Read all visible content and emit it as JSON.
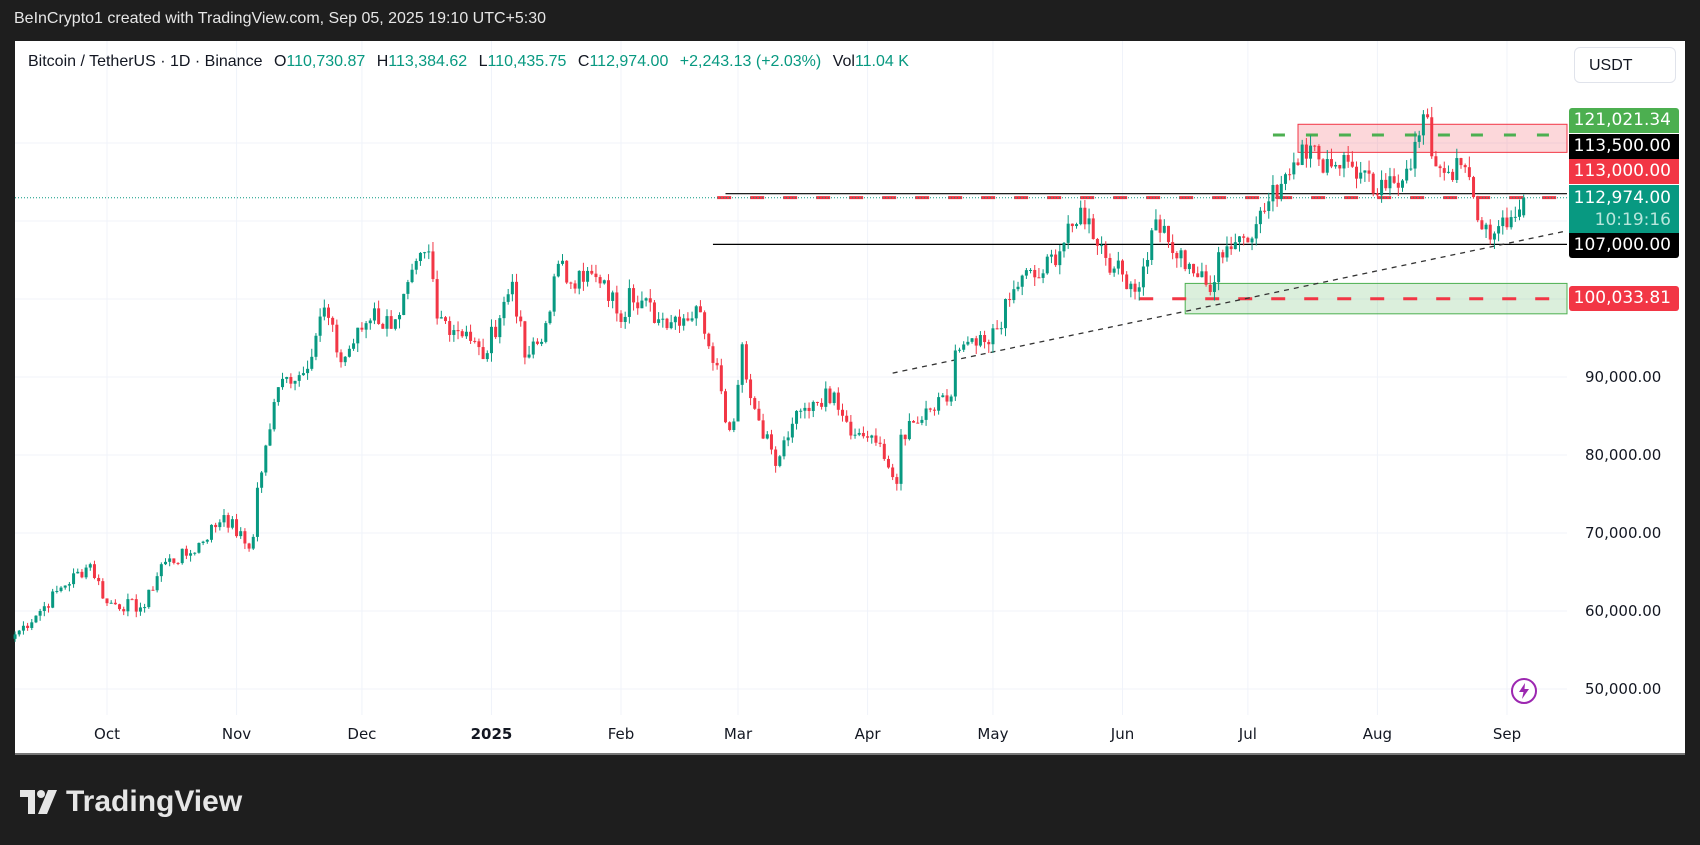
{
  "header": {
    "caption": "BeInCrypto1 created with TradingView.com, Sep 05, 2025 19:10 UTC+5:30"
  },
  "legend": {
    "symbol": "Bitcoin / TetherUS · 1D · Binance",
    "open_label": "O",
    "open": "110,730.87",
    "high_label": "H",
    "high": "113,384.62",
    "low_label": "L",
    "low": "110,435.75",
    "close_label": "C",
    "close": "112,974.00",
    "change": "+2,243.13 (+2.03%)",
    "vol_label": "Vol",
    "vol": "11.04 K"
  },
  "currency_button": "USDT",
  "price_labels": {
    "target": "121,021.34",
    "resistance_upper": "113,500.00",
    "resistance_dashed": "113,000.00",
    "current": "112,974.00",
    "countdown": "10:19:16",
    "support_line": "107,000.00",
    "support_dashed": "100,033.81"
  },
  "brand": {
    "logo_text": "TradingView"
  },
  "colors": {
    "up": "#089981",
    "down": "#F23645",
    "annotation_green": "#4CAF50",
    "annotation_red": "#F23645",
    "background": "#1e1e1e"
  },
  "chart_data": {
    "type": "candlestick",
    "interval": "1D",
    "yaxis": {
      "ticks": [
        50000,
        60000,
        70000,
        80000,
        90000
      ],
      "tick_labels": [
        "50,000.00",
        "60,000.00",
        "70,000.00",
        "80,000.00",
        "90,000.00"
      ],
      "ylim": [
        48000,
        127000
      ],
      "scale": "linear"
    },
    "xaxis": {
      "tick_labels": [
        "Oct",
        "Nov",
        "Dec",
        "2025",
        "Feb",
        "Mar",
        "Apr",
        "May",
        "Jun",
        "Jul",
        "Aug",
        "Sep"
      ],
      "tick_dates": [
        "2024-10-01",
        "2024-11-01",
        "2024-12-01",
        "2025-01-01",
        "2025-02-01",
        "2025-03-01",
        "2025-04-01",
        "2025-05-01",
        "2025-06-01",
        "2025-07-01",
        "2025-08-01",
        "2025-09-01"
      ],
      "range": [
        "2024-09-09",
        "2025-09-05"
      ]
    },
    "grid": true,
    "last_candle": {
      "date": "2025-09-05",
      "open": 110730.87,
      "high": 113384.62,
      "low": 110435.75,
      "close": 112974.0
    },
    "close_keypoints": [
      [
        "2024-09-09",
        57000
      ],
      [
        "2024-09-15",
        60000
      ],
      [
        "2024-09-20",
        63000
      ],
      [
        "2024-09-27",
        66000
      ],
      [
        "2024-10-01",
        61000
      ],
      [
        "2024-10-10",
        60500
      ],
      [
        "2024-10-14",
        66000
      ],
      [
        "2024-10-21",
        67400
      ],
      [
        "2024-10-29",
        72300
      ],
      [
        "2024-11-04",
        68000
      ],
      [
        "2024-11-05",
        69500
      ],
      [
        "2024-11-06",
        75800
      ],
      [
        "2024-11-11",
        88700
      ],
      [
        "2024-11-13",
        90000
      ],
      [
        "2024-11-17",
        90500
      ],
      [
        "2024-11-22",
        98900
      ],
      [
        "2024-11-26",
        91900
      ],
      [
        "2024-12-04",
        98800
      ],
      [
        "2024-12-05",
        96800
      ],
      [
        "2024-12-09",
        97400
      ],
      [
        "2024-12-16",
        106000
      ],
      [
        "2024-12-17",
        106100
      ],
      [
        "2024-12-19",
        97500
      ],
      [
        "2024-12-26",
        95800
      ],
      [
        "2024-12-30",
        92300
      ],
      [
        "2025-01-06",
        102200
      ],
      [
        "2025-01-09",
        92500
      ],
      [
        "2025-01-13",
        94500
      ],
      [
        "2025-01-17",
        104500
      ],
      [
        "2025-01-20",
        102000
      ],
      [
        "2025-01-22",
        103600
      ],
      [
        "2025-01-27",
        102000
      ],
      [
        "2025-02-02",
        97700
      ],
      [
        "2025-02-03",
        101400
      ],
      [
        "2025-02-10",
        97400
      ],
      [
        "2025-02-20",
        98300
      ],
      [
        "2025-02-24",
        91500
      ],
      [
        "2025-02-26",
        84200
      ],
      [
        "2025-02-28",
        84300
      ],
      [
        "2025-03-02",
        94200
      ],
      [
        "2025-03-04",
        87300
      ],
      [
        "2025-03-09",
        80700
      ],
      [
        "2025-03-10",
        78600
      ],
      [
        "2025-03-14",
        84000
      ],
      [
        "2025-03-19",
        86800
      ],
      [
        "2025-03-24",
        88000
      ],
      [
        "2025-03-29",
        82600
      ],
      [
        "2025-04-02",
        82500
      ],
      [
        "2025-04-06",
        78400
      ],
      [
        "2025-04-08",
        76300
      ],
      [
        "2025-04-09",
        82600
      ],
      [
        "2025-04-14",
        84500
      ],
      [
        "2025-04-21",
        87500
      ],
      [
        "2025-04-22",
        93400
      ],
      [
        "2025-04-30",
        94200
      ],
      [
        "2025-05-08",
        103000
      ],
      [
        "2025-05-12",
        102700
      ],
      [
        "2025-05-21",
        109600
      ],
      [
        "2025-05-22",
        111700
      ],
      [
        "2025-05-30",
        103900
      ],
      [
        "2025-06-05",
        101500
      ],
      [
        "2025-06-09",
        110200
      ],
      [
        "2025-06-13",
        105900
      ],
      [
        "2025-06-17",
        104500
      ],
      [
        "2025-06-22",
        100900
      ],
      [
        "2025-06-24",
        106000
      ],
      [
        "2025-07-03",
        109600
      ],
      [
        "2025-07-10",
        116000
      ],
      [
        "2025-07-14",
        119800
      ],
      [
        "2025-07-18",
        117900
      ],
      [
        "2025-07-25",
        117600
      ],
      [
        "2025-08-01",
        113300
      ],
      [
        "2025-08-03",
        114200
      ],
      [
        "2025-08-08",
        116700
      ],
      [
        "2025-08-13",
        123300
      ],
      [
        "2025-08-14",
        118300
      ],
      [
        "2025-08-18",
        116300
      ],
      [
        "2025-08-22",
        116900
      ],
      [
        "2025-08-25",
        110100
      ],
      [
        "2025-08-29",
        108400
      ],
      [
        "2025-09-01",
        109200
      ],
      [
        "2025-09-05",
        112974
      ]
    ],
    "annotations": {
      "resistance_zone": {
        "from": "2025-07-13",
        "top": 122400,
        "bottom": 118800,
        "color": "red"
      },
      "target_line": {
        "from": "2025-07-07",
        "price": 121021.34,
        "style": "dashed",
        "color": "green"
      },
      "horizontal_113500": {
        "from": "2025-02-26",
        "price": 113500,
        "style": "solid",
        "color": "black"
      },
      "horizontal_113000": {
        "from": "2025-02-24",
        "price": 113000,
        "style": "dashed",
        "color": "red"
      },
      "horizontal_107000": {
        "from": "2025-02-23",
        "price": 107000,
        "style": "solid",
        "color": "black"
      },
      "support_zone": {
        "from": "2025-06-16",
        "top": 102000,
        "bottom": 98100,
        "color": "green"
      },
      "support_line": {
        "from": "2025-06-05",
        "price": 100033.81,
        "style": "dashed",
        "color": "red"
      },
      "trendline": {
        "start": [
          "2025-04-07",
          90500
        ],
        "end": [
          "2025-09-15",
          108700
        ],
        "style": "dashed",
        "color": "black"
      }
    }
  }
}
